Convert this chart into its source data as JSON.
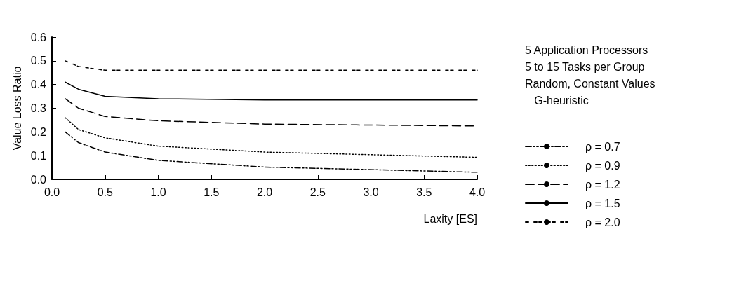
{
  "chart_data": {
    "type": "line",
    "xlabel": "Laxity [ES]",
    "ylabel": "Value Loss Ratio",
    "annotations": [
      "5 Application Processors",
      "5 to 15 Tasks per Group",
      "Random, Constant Values",
      "   G-heuristic"
    ],
    "x": [
      0.125,
      0.25,
      0.5,
      1.0,
      2.0,
      4.0
    ],
    "series": [
      {
        "name": "ρ = 0.7",
        "color": "#000000",
        "line_style": "dashed",
        "values": [
          0.2,
          0.155,
          0.115,
          0.08,
          0.052,
          0.03
        ]
      },
      {
        "name": "ρ = 0.9",
        "color": "#000000",
        "line_style": "dotted",
        "values": [
          0.26,
          0.21,
          0.175,
          0.14,
          0.115,
          0.093
        ]
      },
      {
        "name": "ρ = 1.2",
        "color": "#000000",
        "line_style": "dashed",
        "values": [
          0.34,
          0.3,
          0.265,
          0.247,
          0.233,
          0.225
        ]
      },
      {
        "name": "ρ = 1.5",
        "color": "#000000",
        "line_style": "solid",
        "values": [
          0.41,
          0.38,
          0.35,
          0.34,
          0.335,
          0.335
        ]
      },
      {
        "name": "ρ = 2.0",
        "color": "#000000",
        "line_style": "dashed",
        "values": [
          0.5,
          0.476,
          0.46,
          0.46,
          0.46,
          0.46
        ]
      }
    ],
    "xlim": [
      0,
      4
    ],
    "xticks": [
      {
        "value": 0,
        "label": "0.0"
      },
      {
        "value": 0.5,
        "label": "0.5"
      },
      {
        "value": 1,
        "label": "1.0"
      },
      {
        "value": 1.5,
        "label": "1.5"
      },
      {
        "value": 2,
        "label": "2.0"
      },
      {
        "value": 2.5,
        "label": "2.5"
      },
      {
        "value": 3,
        "label": "3.0"
      },
      {
        "value": 3.5,
        "label": "3.5"
      },
      {
        "value": 4,
        "label": "4.0"
      }
    ],
    "ylim": [
      0,
      0.6
    ],
    "yticks": [
      {
        "value": 0,
        "label": "0.0"
      },
      0.1,
      0.2,
      0.3,
      0.4,
      0.5,
      0.6
    ],
    "grid": false,
    "legend": "right",
    "marker": "none"
  }
}
